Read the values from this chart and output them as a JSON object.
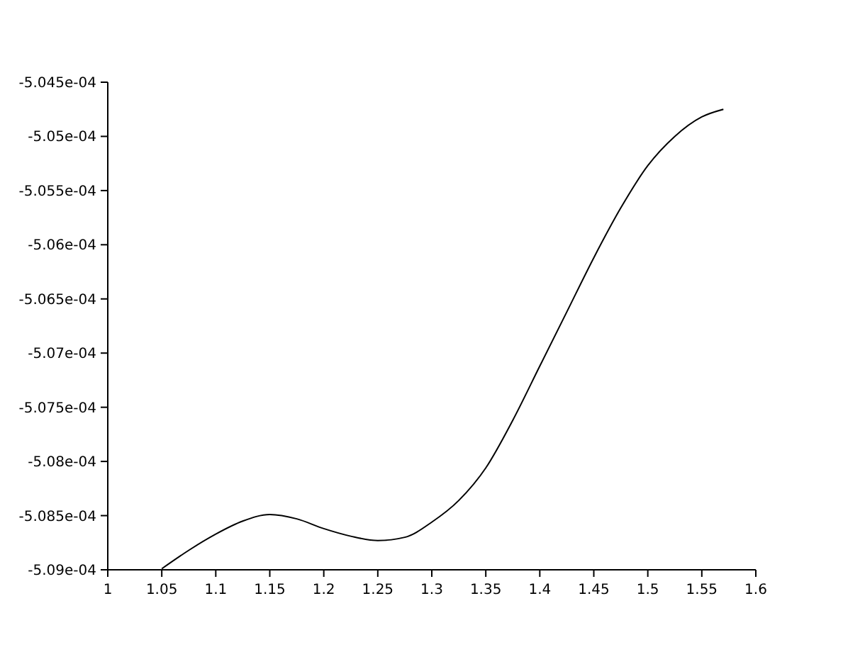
{
  "chart_data": {
    "type": "line",
    "x": [
      1.05,
      1.075,
      1.1,
      1.125,
      1.15,
      1.175,
      1.2,
      1.225,
      1.25,
      1.275,
      1.3,
      1.325,
      1.35,
      1.375,
      1.4,
      1.425,
      1.45,
      1.475,
      1.5,
      1.525,
      1.55,
      1.57
    ],
    "series": [
      {
        "color": "#000000",
        "values": [
          -0.00050899,
          -0.00050882,
          -0.00050867,
          -0.00050855,
          -0.00050849,
          -0.00050853,
          -0.00050862,
          -0.00050869,
          -0.00050873,
          -0.0005087,
          -0.00050856,
          -0.00050836,
          -0.00050806,
          -0.00050762,
          -0.00050712,
          -0.00050662,
          -0.00050612,
          -0.00050566,
          -0.00050527,
          -0.000505,
          -0.00050482,
          -0.00050475
        ]
      }
    ],
    "xlim": [
      1,
      1.6
    ],
    "xticks": [
      1,
      1.05,
      1.1,
      1.15,
      1.2,
      1.25,
      1.3,
      1.35,
      1.4,
      1.45,
      1.5,
      1.55,
      1.6
    ],
    "ylim": [
      -0.000509,
      -0.0005045
    ],
    "yticks": [
      {
        "value": -0.000509,
        "label": "-5.09e-04"
      },
      {
        "value": -0.0005085,
        "label": "-5.085e-04"
      },
      {
        "value": -0.000508,
        "label": "-5.08e-04"
      },
      {
        "value": -0.0005075,
        "label": "-5.075e-04"
      },
      {
        "value": -0.000507,
        "label": "-5.07e-04"
      },
      {
        "value": -0.0005065,
        "label": "-5.065e-04"
      },
      {
        "value": -0.000506,
        "label": "-5.06e-04"
      },
      {
        "value": -0.0005055,
        "label": "-5.055e-04"
      },
      {
        "value": -0.000505,
        "label": "-5.05e-04"
      },
      {
        "value": -0.0005045,
        "label": "-5.045e-04"
      }
    ],
    "grid": false,
    "marker": "none",
    "line_style": "solid"
  }
}
